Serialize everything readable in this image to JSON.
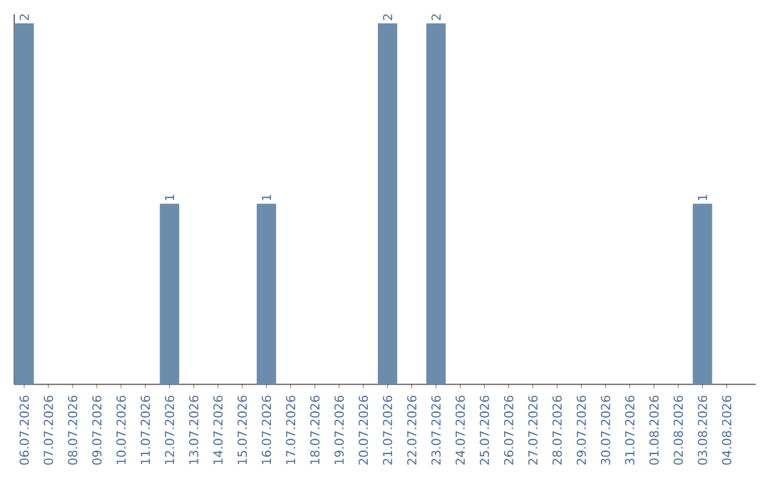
{
  "chart_data": {
    "type": "bar",
    "categories": [
      "06.07.2026",
      "07.07.2026",
      "08.07.2026",
      "09.07.2026",
      "10.07.2026",
      "11.07.2026",
      "12.07.2026",
      "13.07.2026",
      "14.07.2026",
      "15.07.2026",
      "16.07.2026",
      "17.07.2026",
      "18.07.2026",
      "19.07.2026",
      "20.07.2026",
      "21.07.2026",
      "22.07.2026",
      "23.07.2026",
      "24.07.2026",
      "25.07.2026",
      "26.07.2026",
      "27.07.2026",
      "28.07.2026",
      "29.07.2026",
      "30.07.2026",
      "31.07.2026",
      "01.08.2026",
      "02.08.2026",
      "03.08.2026",
      "04.08.2026"
    ],
    "values": [
      2,
      0,
      0,
      0,
      0,
      0,
      1,
      0,
      0,
      0,
      1,
      0,
      0,
      0,
      0,
      2,
      0,
      2,
      0,
      0,
      0,
      0,
      0,
      0,
      0,
      0,
      0,
      0,
      1,
      0
    ],
    "value_labels": [
      "2",
      null,
      null,
      null,
      null,
      null,
      "1",
      null,
      null,
      null,
      "1",
      null,
      null,
      null,
      null,
      "2",
      null,
      "2",
      null,
      null,
      null,
      null,
      null,
      null,
      null,
      null,
      null,
      null,
      "1",
      null
    ],
    "color": "#6b8cab",
    "ylim": [
      0,
      2.05
    ],
    "tick_labels": "x"
  }
}
